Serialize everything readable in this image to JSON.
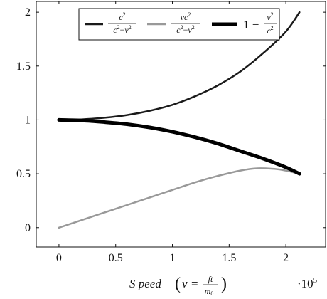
{
  "chart_data": {
    "type": "line",
    "x_domain": [
      -0.2,
      2.35
    ],
    "y_domain": [
      -0.18,
      2.1
    ],
    "x_ticks": [
      {
        "value": 0,
        "label": "0"
      },
      {
        "value": 0.5,
        "label": "0.5"
      },
      {
        "value": 1,
        "label": "1"
      },
      {
        "value": 1.5,
        "label": "1.5"
      },
      {
        "value": 2,
        "label": "2"
      }
    ],
    "y_ticks": [
      {
        "value": 0,
        "label": "0"
      },
      {
        "value": 0.5,
        "label": "0.5"
      },
      {
        "value": 1,
        "label": "1"
      },
      {
        "value": 1.5,
        "label": "1.5"
      },
      {
        "value": 2,
        "label": "2"
      }
    ],
    "x_scale_label": "·10",
    "x_scale_exponent": "5",
    "xlabel": {
      "prefix": "S peed",
      "var": "v",
      "eq": "=",
      "frac_num": "ft",
      "frac_den": "m",
      "frac_den_sub": "0"
    },
    "legend_position": "top-right",
    "series": [
      {
        "name": "c^2/(c^2-v^2)",
        "color": "#1a1a1a",
        "stroke": "thin",
        "x": [
          0,
          0.2,
          0.4,
          0.6,
          0.8,
          1.0,
          1.2,
          1.4,
          1.6,
          1.8,
          2.0,
          2.12
        ],
        "y": [
          1.0,
          1.005,
          1.02,
          1.045,
          1.085,
          1.14,
          1.22,
          1.32,
          1.45,
          1.62,
          1.82,
          2.0
        ]
      },
      {
        "name": "vc^2/(c^2-v^2)",
        "color": "#999999",
        "stroke": "thin",
        "x": [
          0,
          0.2,
          0.4,
          0.6,
          0.8,
          1.0,
          1.2,
          1.4,
          1.6,
          1.75,
          1.9,
          2.0,
          2.12
        ],
        "y": [
          0.0,
          0.07,
          0.14,
          0.21,
          0.28,
          0.35,
          0.42,
          0.48,
          0.53,
          0.55,
          0.545,
          0.53,
          0.5
        ]
      },
      {
        "name": "1 - v^2/c^2",
        "color": "#000000",
        "stroke": "thick",
        "x": [
          0,
          0.2,
          0.4,
          0.6,
          0.8,
          1.0,
          1.2,
          1.4,
          1.6,
          1.8,
          2.0,
          2.12
        ],
        "y": [
          1.0,
          0.995,
          0.98,
          0.96,
          0.93,
          0.89,
          0.84,
          0.78,
          0.71,
          0.64,
          0.56,
          0.5
        ]
      }
    ]
  }
}
